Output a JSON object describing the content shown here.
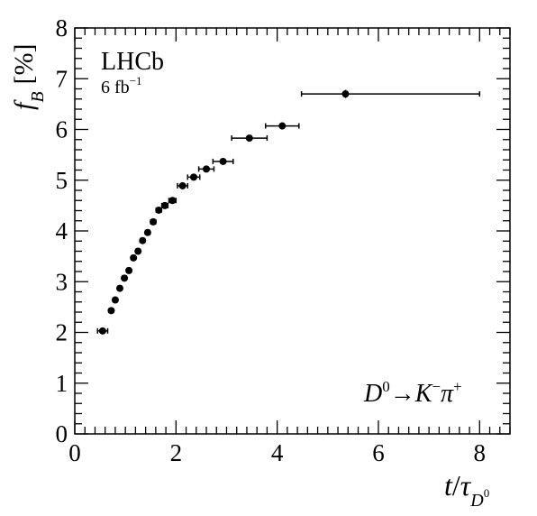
{
  "chart_data": {
    "type": "scatter",
    "experiment_label": "LHCb",
    "luminosity_label": "6 fb",
    "luminosity_exponent": "−1",
    "decay_label": {
      "D": "D",
      "D_sup": "0",
      "arrow": "→",
      "K": "K",
      "K_sup": "−",
      "pi": "π",
      "pi_sup": "+"
    },
    "xlabel": {
      "t": "t",
      "slash": "/",
      "tau": "τ",
      "sub": "D",
      "subsup": "0"
    },
    "ylabel": {
      "f": "f",
      "sub": "B",
      "unit": "[%]"
    },
    "xlim": [
      0,
      8.6
    ],
    "ylim": [
      0,
      8
    ],
    "x_ticks": [
      0,
      2,
      4,
      6,
      8
    ],
    "y_ticks": [
      0,
      1,
      2,
      3,
      4,
      5,
      6,
      7,
      8
    ],
    "x_minor_step": 0.2,
    "y_minor_step": 0.2,
    "grid": false,
    "color": "#000000",
    "points": [
      {
        "x": 0.55,
        "xlo": 0.45,
        "xhi": 0.65,
        "y": 2.03,
        "yerr": 0.02
      },
      {
        "x": 0.72,
        "xlo": 0.68,
        "xhi": 0.76,
        "y": 2.43,
        "yerr": 0.02
      },
      {
        "x": 0.8,
        "xlo": 0.76,
        "xhi": 0.84,
        "y": 2.64,
        "yerr": 0.02
      },
      {
        "x": 0.89,
        "xlo": 0.85,
        "xhi": 0.93,
        "y": 2.87,
        "yerr": 0.02
      },
      {
        "x": 0.98,
        "xlo": 0.94,
        "xhi": 1.02,
        "y": 3.07,
        "yerr": 0.02
      },
      {
        "x": 1.07,
        "xlo": 1.03,
        "xhi": 1.11,
        "y": 3.22,
        "yerr": 0.02
      },
      {
        "x": 1.16,
        "xlo": 1.12,
        "xhi": 1.2,
        "y": 3.47,
        "yerr": 0.02
      },
      {
        "x": 1.25,
        "xlo": 1.21,
        "xhi": 1.29,
        "y": 3.6,
        "yerr": 0.02
      },
      {
        "x": 1.34,
        "xlo": 1.3,
        "xhi": 1.38,
        "y": 3.81,
        "yerr": 0.02
      },
      {
        "x": 1.44,
        "xlo": 1.4,
        "xhi": 1.48,
        "y": 3.97,
        "yerr": 0.02
      },
      {
        "x": 1.55,
        "xlo": 1.5,
        "xhi": 1.6,
        "y": 4.18,
        "yerr": 0.02
      },
      {
        "x": 1.66,
        "xlo": 1.61,
        "xhi": 1.71,
        "y": 4.41,
        "yerr": 0.02
      },
      {
        "x": 1.78,
        "xlo": 1.72,
        "xhi": 1.84,
        "y": 4.5,
        "yerr": 0.02
      },
      {
        "x": 1.93,
        "xlo": 1.86,
        "xhi": 2.0,
        "y": 4.6,
        "yerr": 0.02
      },
      {
        "x": 2.13,
        "xlo": 2.03,
        "xhi": 2.23,
        "y": 4.89,
        "yerr": 0.03
      },
      {
        "x": 2.35,
        "xlo": 2.23,
        "xhi": 2.47,
        "y": 5.06,
        "yerr": 0.03
      },
      {
        "x": 2.6,
        "xlo": 2.45,
        "xhi": 2.75,
        "y": 5.22,
        "yerr": 0.03
      },
      {
        "x": 2.93,
        "xlo": 2.73,
        "xhi": 3.13,
        "y": 5.37,
        "yerr": 0.03
      },
      {
        "x": 3.45,
        "xlo": 3.1,
        "xhi": 3.8,
        "y": 5.83,
        "yerr": 0.04
      },
      {
        "x": 4.1,
        "xlo": 3.77,
        "xhi": 4.43,
        "y": 6.07,
        "yerr": 0.07
      },
      {
        "x": 5.35,
        "xlo": 4.48,
        "xhi": 8.0,
        "y": 6.7,
        "yerr": 0.08
      }
    ]
  }
}
